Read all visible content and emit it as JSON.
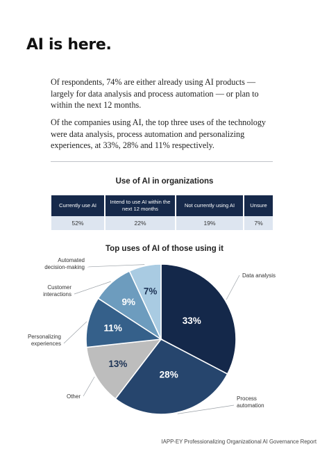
{
  "heading": "AI is here.",
  "paragraphs": [
    "Of respondents, 74% are either already using AI products — largely for data analysis and process automation — or plan to within the next 12 months.",
    "Of the companies using AI, the top three uses of the technology were data analysis, process automation and personalizing experiences, at 33%, 28% and 11% respectively."
  ],
  "table_title": "Use of AI in organizations",
  "table": {
    "headers": [
      "Currently use AI",
      "Intend to use AI within the next 12 months",
      "Not currently using AI",
      "Unsure"
    ],
    "values": [
      "52%",
      "22%",
      "19%",
      "7%"
    ]
  },
  "pie_title": "Top uses of AI of those using it",
  "chart_data": {
    "type": "pie",
    "title": "Top uses of AI of those using it",
    "slices": [
      {
        "label": "Data analysis",
        "value": 33,
        "value_label": "33%",
        "color": "#14284a"
      },
      {
        "label": "Process automation",
        "value": 28,
        "value_label": "28%",
        "color": "#26456d"
      },
      {
        "label": "Other",
        "value": 13,
        "value_label": "13%",
        "color": "#bdbdbd"
      },
      {
        "label": "Personalizing experiences",
        "value": 11,
        "value_label": "11%",
        "color": "#35608a"
      },
      {
        "label": "Customer interactions",
        "value": 9,
        "value_label": "9%",
        "color": "#6d9cbe"
      },
      {
        "label": "Automated decision-making",
        "value": 7,
        "value_label": "7%",
        "color": "#a9cbe2"
      }
    ]
  },
  "footer": "IAPP-EY Professionalizing Organizational AI Governance Report"
}
